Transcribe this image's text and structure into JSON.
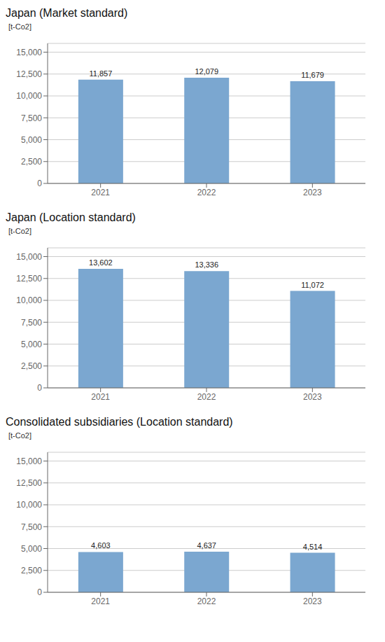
{
  "chart_data": [
    {
      "type": "bar",
      "title": "Japan (Market standard)",
      "ylabel": "[t-Co2]",
      "categories": [
        "2021",
        "2022",
        "2023"
      ],
      "values": [
        11857,
        12079,
        11679
      ],
      "value_labels": [
        "11,857",
        "12,079",
        "11,679"
      ],
      "color": "#7ba7d0",
      "ylim": [
        0,
        16000
      ],
      "yticks": [
        0,
        {
          "value": 2500,
          "label": "2,500"
        },
        {
          "value": 5000,
          "label": "5,000"
        },
        {
          "value": 7500,
          "label": "7,500"
        },
        {
          "value": 10000,
          "label": "10,000"
        },
        {
          "value": 12500,
          "label": "12,500"
        },
        {
          "value": 15000,
          "label": "15,000"
        }
      ],
      "grid": true,
      "data_labels": true
    },
    {
      "type": "bar",
      "title": "Japan (Location standard)",
      "ylabel": "[t-Co2]",
      "categories": [
        "2021",
        "2022",
        "2023"
      ],
      "values": [
        13602,
        13336,
        11072
      ],
      "value_labels": [
        "13,602",
        "13,336",
        "11,072"
      ],
      "color": "#7ba7d0",
      "ylim": [
        0,
        16000
      ],
      "yticks": [
        0,
        {
          "value": 2500,
          "label": "2,500"
        },
        {
          "value": 5000,
          "label": "5,000"
        },
        {
          "value": 7500,
          "label": "7,500"
        },
        {
          "value": 10000,
          "label": "10,000"
        },
        {
          "value": 12500,
          "label": "12,500"
        },
        {
          "value": 15000,
          "label": "15,000"
        }
      ],
      "grid": true,
      "data_labels": true
    },
    {
      "type": "bar",
      "title": "Consolidated subsidiaries (Location standard)",
      "ylabel": "[t-Co2]",
      "categories": [
        "2021",
        "2022",
        "2023"
      ],
      "values": [
        4603,
        4637,
        4514
      ],
      "value_labels": [
        "4,603",
        "4,637",
        "4,514"
      ],
      "color": "#7ba7d0",
      "ylim": [
        0,
        16000
      ],
      "yticks": [
        0,
        {
          "value": 2500,
          "label": "2,500"
        },
        {
          "value": 5000,
          "label": "5,000"
        },
        {
          "value": 7500,
          "label": "7,500"
        },
        {
          "value": 10000,
          "label": "10,000"
        },
        {
          "value": 12500,
          "label": "12,500"
        },
        {
          "value": 15000,
          "label": "15,000"
        }
      ],
      "grid": true,
      "data_labels": true
    }
  ]
}
